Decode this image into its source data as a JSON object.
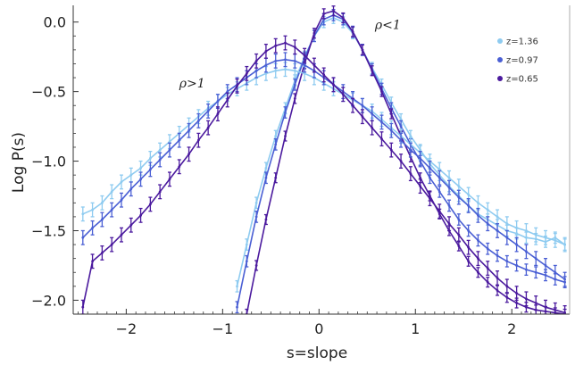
{
  "chart_data": {
    "type": "line",
    "title": "",
    "xlabel": "s=slope",
    "ylabel": "Log P(s)",
    "xlim": [
      -2.55,
      2.6
    ],
    "ylim": [
      -2.1,
      0.12
    ],
    "xticks": [
      -2,
      -1,
      0,
      1,
      2
    ],
    "xtick_labels": [
      "−2",
      "−1",
      "0",
      "1",
      "2"
    ],
    "yticks": [
      0.0,
      -0.5,
      -1.0,
      -1.5,
      -2.0
    ],
    "ytick_labels": [
      "0.0",
      "−0.5",
      "−1.0",
      "−1.5",
      "−2.0"
    ],
    "grid": false,
    "legend_position": "top-right",
    "error_bars": true,
    "annotations": [
      {
        "text": "ρ<1",
        "x": 0.58,
        "y": -0.05
      },
      {
        "text": "ρ>1",
        "x": -1.45,
        "y": -0.47
      }
    ],
    "series": [
      {
        "name": "z=1.36",
        "color": "#8ecbf0",
        "group": "rho<1",
        "x": [
          -0.85,
          -0.75,
          -0.65,
          -0.55,
          -0.45,
          -0.35,
          -0.25,
          -0.15,
          -0.05,
          0.05,
          0.15,
          0.25,
          0.35,
          0.45,
          0.55,
          0.65,
          0.75,
          0.85,
          0.95,
          1.05,
          1.15,
          1.25,
          1.35,
          1.45,
          1.55,
          1.65,
          1.75,
          1.85,
          1.95,
          2.05,
          2.15,
          2.25,
          2.35,
          2.45,
          2.55
        ],
        "y": [
          -1.9,
          -1.6,
          -1.3,
          -1.05,
          -0.82,
          -0.62,
          -0.42,
          -0.25,
          -0.1,
          0.0,
          0.03,
          0.0,
          -0.08,
          -0.2,
          -0.33,
          -0.45,
          -0.58,
          -0.7,
          -0.82,
          -0.92,
          -1.02,
          -1.1,
          -1.18,
          -1.25,
          -1.32,
          -1.38,
          -1.42,
          -1.46,
          -1.5,
          -1.52,
          -1.55,
          -1.56,
          -1.58,
          -1.55,
          -1.6
        ],
        "err": 0.04
      },
      {
        "name": "z=0.97",
        "color": "#4a5fd4",
        "group": "rho<1",
        "x": [
          -0.85,
          -0.75,
          -0.65,
          -0.55,
          -0.45,
          -0.35,
          -0.25,
          -0.15,
          -0.05,
          0.05,
          0.15,
          0.25,
          0.35,
          0.45,
          0.55,
          0.65,
          0.75,
          0.85,
          0.95,
          1.05,
          1.15,
          1.25,
          1.35,
          1.45,
          1.55,
          1.65,
          1.75,
          1.85,
          1.95,
          2.05,
          2.15,
          2.25,
          2.35,
          2.45,
          2.55
        ],
        "y": [
          -2.05,
          -1.72,
          -1.4,
          -1.12,
          -0.88,
          -0.65,
          -0.45,
          -0.26,
          -0.1,
          0.02,
          0.05,
          0.02,
          -0.07,
          -0.2,
          -0.34,
          -0.48,
          -0.62,
          -0.75,
          -0.88,
          -1.0,
          -1.12,
          -1.22,
          -1.32,
          -1.42,
          -1.5,
          -1.57,
          -1.63,
          -1.68,
          -1.72,
          -1.75,
          -1.78,
          -1.8,
          -1.82,
          -1.85,
          -1.87
        ],
        "err": 0.04
      },
      {
        "name": "z=0.65",
        "color": "#4b1a9e",
        "group": "rho<1",
        "x": [
          -0.75,
          -0.65,
          -0.55,
          -0.45,
          -0.35,
          -0.25,
          -0.15,
          -0.05,
          0.05,
          0.15,
          0.25,
          0.35,
          0.45,
          0.55,
          0.65,
          0.75,
          0.85,
          0.95,
          1.05,
          1.15,
          1.25,
          1.35,
          1.45,
          1.55,
          1.65,
          1.75,
          1.85,
          1.95,
          2.05,
          2.15,
          2.25,
          2.35,
          2.45,
          2.55
        ],
        "y": [
          -2.1,
          -1.75,
          -1.42,
          -1.12,
          -0.82,
          -0.55,
          -0.3,
          -0.08,
          0.06,
          0.08,
          0.03,
          -0.07,
          -0.2,
          -0.35,
          -0.5,
          -0.66,
          -0.82,
          -0.97,
          -1.12,
          -1.25,
          -1.38,
          -1.5,
          -1.61,
          -1.72,
          -1.8,
          -1.87,
          -1.93,
          -1.98,
          -2.02,
          -2.05,
          -2.07,
          -2.08,
          -2.09,
          -2.1
        ],
        "err": 0.035
      },
      {
        "name": "z=1.36",
        "color": "#8ecbf0",
        "group": "rho>1",
        "x": [
          -2.45,
          -2.35,
          -2.25,
          -2.15,
          -2.05,
          -1.95,
          -1.85,
          -1.75,
          -1.65,
          -1.55,
          -1.45,
          -1.35,
          -1.25,
          -1.15,
          -1.05,
          -0.95,
          -0.85,
          -0.75,
          -0.65,
          -0.55,
          -0.45,
          -0.35,
          -0.25,
          -0.15,
          -0.05,
          0.05,
          0.15,
          0.25,
          0.35,
          0.45,
          0.55,
          0.65,
          0.75,
          0.85,
          0.95,
          1.05,
          1.15,
          1.25,
          1.35,
          1.45,
          1.55,
          1.65,
          1.75,
          1.85,
          1.95,
          2.05,
          2.15,
          2.25,
          2.35,
          2.45,
          2.55
        ],
        "y": [
          -1.38,
          -1.35,
          -1.3,
          -1.22,
          -1.15,
          -1.1,
          -1.05,
          -0.98,
          -0.92,
          -0.86,
          -0.8,
          -0.74,
          -0.68,
          -0.62,
          -0.57,
          -0.52,
          -0.48,
          -0.44,
          -0.4,
          -0.37,
          -0.35,
          -0.34,
          -0.35,
          -0.37,
          -0.4,
          -0.44,
          -0.48,
          -0.52,
          -0.56,
          -0.6,
          -0.64,
          -0.7,
          -0.76,
          -0.82,
          -0.88,
          -0.94,
          -1.0,
          -1.06,
          -1.12,
          -1.18,
          -1.24,
          -1.3,
          -1.35,
          -1.4,
          -1.45,
          -1.48,
          -1.5,
          -1.53,
          -1.55,
          -1.57,
          -1.6
        ],
        "err": 0.05
      },
      {
        "name": "z=0.97",
        "color": "#4a5fd4",
        "group": "rho>1",
        "x": [
          -2.45,
          -2.35,
          -2.25,
          -2.15,
          -2.05,
          -1.95,
          -1.85,
          -1.75,
          -1.65,
          -1.55,
          -1.45,
          -1.35,
          -1.25,
          -1.15,
          -1.05,
          -0.95,
          -0.85,
          -0.75,
          -0.65,
          -0.55,
          -0.45,
          -0.35,
          -0.25,
          -0.15,
          -0.05,
          0.05,
          0.15,
          0.25,
          0.35,
          0.45,
          0.55,
          0.65,
          0.75,
          0.85,
          0.95,
          1.05,
          1.15,
          1.25,
          1.35,
          1.45,
          1.55,
          1.65,
          1.75,
          1.85,
          1.95,
          2.05,
          2.15,
          2.25,
          2.35,
          2.45,
          2.55
        ],
        "y": [
          -1.55,
          -1.48,
          -1.42,
          -1.35,
          -1.28,
          -1.2,
          -1.13,
          -1.06,
          -0.99,
          -0.92,
          -0.85,
          -0.78,
          -0.71,
          -0.64,
          -0.57,
          -0.5,
          -0.45,
          -0.4,
          -0.35,
          -0.31,
          -0.28,
          -0.27,
          -0.28,
          -0.31,
          -0.35,
          -0.4,
          -0.45,
          -0.5,
          -0.55,
          -0.6,
          -0.66,
          -0.72,
          -0.78,
          -0.85,
          -0.92,
          -0.98,
          -1.05,
          -1.12,
          -1.19,
          -1.26,
          -1.32,
          -1.39,
          -1.45,
          -1.5,
          -1.55,
          -1.6,
          -1.65,
          -1.7,
          -1.75,
          -1.8,
          -1.85
        ],
        "err": 0.05
      },
      {
        "name": "z=0.65",
        "color": "#4b1a9e",
        "group": "rho>1",
        "x": [
          -2.45,
          -2.35,
          -2.25,
          -2.15,
          -2.05,
          -1.95,
          -1.85,
          -1.75,
          -1.65,
          -1.55,
          -1.45,
          -1.35,
          -1.25,
          -1.15,
          -1.05,
          -0.95,
          -0.85,
          -0.75,
          -0.65,
          -0.55,
          -0.45,
          -0.35,
          -0.25,
          -0.15,
          -0.05,
          0.05,
          0.15,
          0.25,
          0.35,
          0.45,
          0.55,
          0.65,
          0.75,
          0.85,
          0.95,
          1.05,
          1.15,
          1.25,
          1.35,
          1.45,
          1.55,
          1.65,
          1.75,
          1.85,
          1.95,
          2.05,
          2.15,
          2.25,
          2.35,
          2.45,
          2.55
        ],
        "y": [
          -2.05,
          -1.72,
          -1.66,
          -1.6,
          -1.53,
          -1.46,
          -1.39,
          -1.31,
          -1.22,
          -1.13,
          -1.04,
          -0.95,
          -0.85,
          -0.76,
          -0.66,
          -0.56,
          -0.46,
          -0.37,
          -0.28,
          -0.21,
          -0.17,
          -0.15,
          -0.18,
          -0.24,
          -0.31,
          -0.38,
          -0.45,
          -0.52,
          -0.6,
          -0.68,
          -0.76,
          -0.84,
          -0.92,
          -1.0,
          -1.09,
          -1.18,
          -1.27,
          -1.36,
          -1.45,
          -1.53,
          -1.62,
          -1.7,
          -1.77,
          -1.84,
          -1.9,
          -1.95,
          -1.99,
          -2.02,
          -2.05,
          -2.07,
          -2.09
        ],
        "err": 0.05
      }
    ],
    "legend": [
      {
        "label": "z=1.36",
        "color": "#8ecbf0"
      },
      {
        "label": "z=0.97",
        "color": "#4a5fd4"
      },
      {
        "label": "z=0.65",
        "color": "#4b1a9e"
      }
    ]
  }
}
